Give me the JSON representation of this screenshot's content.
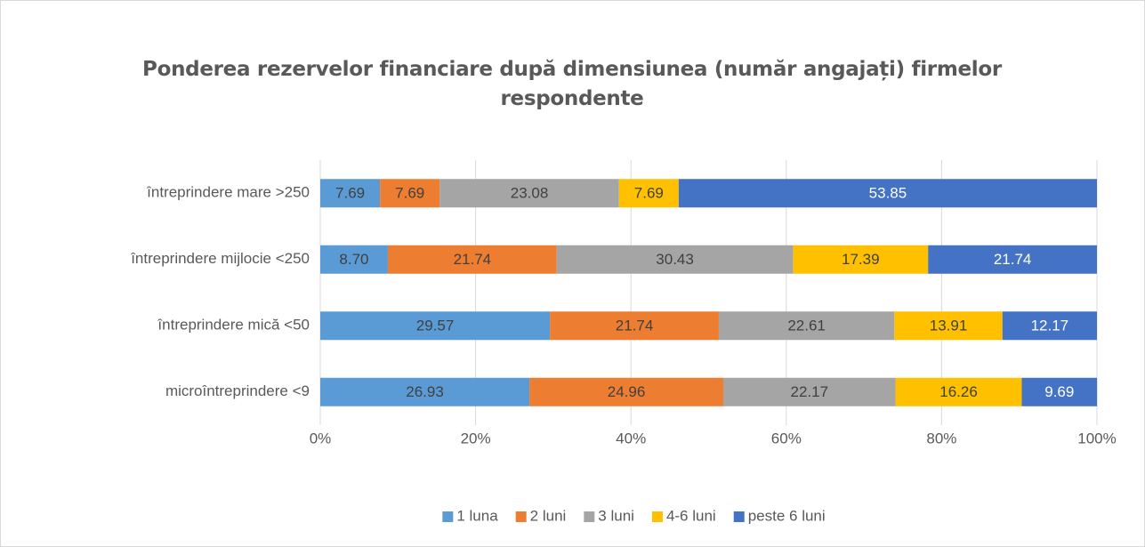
{
  "chart_data": {
    "type": "stacked-bar-horizontal",
    "title": "Ponderea rezervelor financiare după dimensiunea (număr angajați) firmelor respondente",
    "categories": [
      "întreprindere mare >250",
      "întreprindere mijlocie <250",
      "întreprindere mică <50",
      "microîntreprindere <9"
    ],
    "series": [
      {
        "name": "1 luna",
        "color": "#5b9bd5",
        "values": [
          7.69,
          8.7,
          29.57,
          26.93
        ],
        "value_labels": [
          "7.69",
          "8.70",
          "29.57",
          "26.93"
        ]
      },
      {
        "name": "2 luni",
        "color": "#ed7d31",
        "values": [
          7.69,
          21.74,
          21.74,
          24.96
        ],
        "value_labels": [
          "7.69",
          "21.74",
          "21.74",
          "24.96"
        ]
      },
      {
        "name": "3 luni",
        "color": "#a5a5a5",
        "values": [
          23.08,
          30.43,
          22.61,
          22.17
        ],
        "value_labels": [
          "23.08",
          "30.43",
          "22.61",
          "22.17"
        ]
      },
      {
        "name": "4-6 luni",
        "color": "#ffc000",
        "values": [
          7.69,
          17.39,
          13.91,
          16.26
        ],
        "value_labels": [
          "7.69",
          "17.39",
          "13.91",
          "16.26"
        ]
      },
      {
        "name": "peste 6 luni",
        "color": "#4472c4",
        "values": [
          53.85,
          21.74,
          12.17,
          9.69
        ],
        "value_labels": [
          "53.85",
          "21.74",
          "12.17",
          "9.69"
        ]
      }
    ],
    "xlim": [
      0,
      100
    ],
    "xticks": [
      {
        "value": 0,
        "label": "0%"
      },
      {
        "value": 20,
        "label": "20%"
      },
      {
        "value": 40,
        "label": "40%"
      },
      {
        "value": 60,
        "label": "60%"
      },
      {
        "value": 80,
        "label": "80%"
      },
      {
        "value": 100,
        "label": "100%"
      }
    ],
    "grid": true,
    "legend": "bottom"
  }
}
